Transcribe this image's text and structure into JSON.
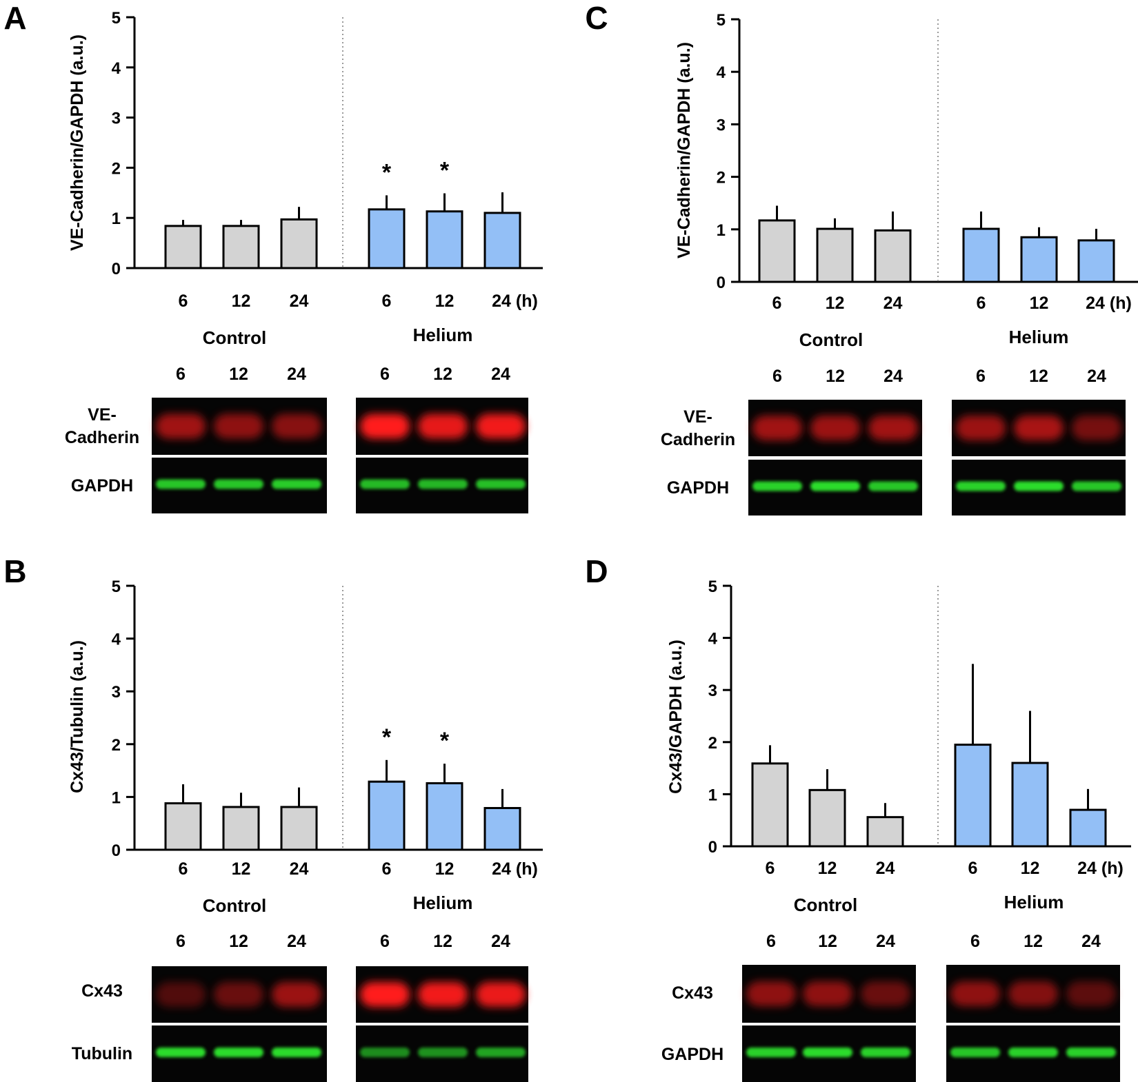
{
  "colors": {
    "control_fill": "#d3d3d3",
    "helium_fill": "#93bff6",
    "bar_stroke": "#000000",
    "error_bar": "#000000",
    "separator": "#999999",
    "blot_bg": "#050505",
    "red_band": "#ff1a1a",
    "green_band": "#2ee82e"
  },
  "chart_data": [
    {
      "panel": "A",
      "type": "bar",
      "ylabel": "VE-Cadherin/GAPDH (a.u.)",
      "ylim": [
        0,
        5
      ],
      "yticks": [
        "0",
        "1",
        "2",
        "3",
        "4",
        "5"
      ],
      "time_labels": [
        "6",
        "12",
        "24",
        "6",
        "12",
        "24 (h)"
      ],
      "groups": [
        "Control",
        "Helium"
      ],
      "series": [
        {
          "name": "Control",
          "x": [
            "6",
            "12",
            "24"
          ],
          "values": [
            0.84,
            0.84,
            0.97
          ],
          "errors": [
            0.12,
            0.12,
            0.25
          ],
          "stars": [
            "",
            "",
            ""
          ]
        },
        {
          "name": "Helium",
          "x": [
            "6",
            "12",
            "24"
          ],
          "values": [
            1.17,
            1.13,
            1.1
          ],
          "errors": [
            0.28,
            0.36,
            0.41
          ],
          "stars": [
            "*",
            "*",
            ""
          ]
        }
      ],
      "blot": {
        "lane_labels": [
          "6",
          "12",
          "24",
          "6",
          "12",
          "24"
        ],
        "rows": [
          {
            "label_lines": [
              "VE-",
              "Cadherin"
            ],
            "color": "red",
            "control_intensity": [
              0.62,
              0.55,
              0.52
            ],
            "helium_intensity": [
              1.0,
              0.9,
              0.95
            ]
          },
          {
            "label_lines": [
              "GAPDH"
            ],
            "color": "green",
            "control_intensity": [
              0.85,
              0.85,
              0.88
            ],
            "helium_intensity": [
              0.8,
              0.78,
              0.82
            ]
          }
        ]
      }
    },
    {
      "panel": "B",
      "type": "bar",
      "ylabel": "Cx43/Tubulin (a.u.)",
      "ylim": [
        0,
        5
      ],
      "yticks": [
        "0",
        "1",
        "2",
        "3",
        "4",
        "5"
      ],
      "time_labels": [
        "6",
        "12",
        "24",
        "6",
        "12",
        "24 (h)"
      ],
      "groups": [
        "Control",
        "Helium"
      ],
      "series": [
        {
          "name": "Control",
          "x": [
            "6",
            "12",
            "24"
          ],
          "values": [
            0.88,
            0.81,
            0.81
          ],
          "errors": [
            0.36,
            0.27,
            0.37
          ],
          "stars": [
            "",
            "",
            ""
          ]
        },
        {
          "name": "Helium",
          "x": [
            "6",
            "12",
            "24"
          ],
          "values": [
            1.29,
            1.26,
            0.79
          ],
          "errors": [
            0.41,
            0.37,
            0.36
          ],
          "stars": [
            "*",
            "*",
            ""
          ]
        }
      ],
      "blot": {
        "lane_labels": [
          "6",
          "12",
          "24",
          "6",
          "12",
          "24"
        ],
        "rows": [
          {
            "label_lines": [
              "Cx43"
            ],
            "color": "red",
            "control_intensity": [
              0.3,
              0.4,
              0.6
            ],
            "helium_intensity": [
              1.0,
              0.95,
              0.92
            ]
          },
          {
            "label_lines": [
              "Tubulin"
            ],
            "color": "green",
            "control_intensity": [
              0.95,
              0.95,
              0.95
            ],
            "helium_intensity": [
              0.6,
              0.62,
              0.7
            ]
          }
        ]
      }
    },
    {
      "panel": "C",
      "type": "bar",
      "ylabel": "VE-Cadherin/GAPDH (a.u.)",
      "ylim": [
        0,
        5
      ],
      "yticks": [
        "0",
        "1",
        "2",
        "3",
        "4",
        "5"
      ],
      "time_labels": [
        "6",
        "12",
        "24",
        "6",
        "12",
        "24 (h)"
      ],
      "groups": [
        "Control",
        "Helium"
      ],
      "series": [
        {
          "name": "Control",
          "x": [
            "6",
            "12",
            "24"
          ],
          "values": [
            1.17,
            1.01,
            0.98
          ],
          "errors": [
            0.28,
            0.2,
            0.36
          ],
          "stars": [
            "",
            "",
            ""
          ]
        },
        {
          "name": "Helium",
          "x": [
            "6",
            "12",
            "24"
          ],
          "values": [
            1.01,
            0.85,
            0.79
          ],
          "errors": [
            0.33,
            0.19,
            0.22
          ],
          "stars": [
            "",
            "",
            ""
          ]
        }
      ],
      "blot": {
        "lane_labels": [
          "6",
          "12",
          "24",
          "6",
          "12",
          "24"
        ],
        "rows": [
          {
            "label_lines": [
              "VE-",
              "Cadherin"
            ],
            "color": "red",
            "control_intensity": [
              0.62,
              0.6,
              0.62
            ],
            "helium_intensity": [
              0.6,
              0.65,
              0.45
            ]
          },
          {
            "label_lines": [
              "GAPDH"
            ],
            "color": "green",
            "control_intensity": [
              0.9,
              0.95,
              0.85
            ],
            "helium_intensity": [
              0.9,
              0.95,
              0.85
            ]
          }
        ]
      }
    },
    {
      "panel": "D",
      "type": "bar",
      "ylabel": "Cx43/GAPDH (a.u.)",
      "ylim": [
        0,
        5
      ],
      "yticks": [
        "0",
        "1",
        "2",
        "3",
        "4",
        "5"
      ],
      "time_labels": [
        "6",
        "12",
        "24",
        "6",
        "12",
        "24 (h)"
      ],
      "groups": [
        "Control",
        "Helium"
      ],
      "series": [
        {
          "name": "Control",
          "x": [
            "6",
            "12",
            "24"
          ],
          "values": [
            1.59,
            1.08,
            0.56
          ],
          "errors": [
            0.35,
            0.4,
            0.27
          ],
          "stars": [
            "",
            "",
            ""
          ]
        },
        {
          "name": "Helium",
          "x": [
            "6",
            "12",
            "24"
          ],
          "values": [
            1.95,
            1.6,
            0.7
          ],
          "errors": [
            1.55,
            1.0,
            0.4
          ],
          "stars": [
            "",
            "",
            ""
          ]
        }
      ],
      "blot": {
        "lane_labels": [
          "6",
          "12",
          "24",
          "6",
          "12",
          "24"
        ],
        "rows": [
          {
            "label_lines": [
              "Cx43"
            ],
            "color": "red",
            "control_intensity": [
              0.55,
              0.55,
              0.4
            ],
            "helium_intensity": [
              0.55,
              0.5,
              0.35
            ]
          },
          {
            "label_lines": [
              "GAPDH"
            ],
            "color": "green",
            "control_intensity": [
              0.9,
              0.95,
              0.9
            ],
            "helium_intensity": [
              0.85,
              0.9,
              0.9
            ]
          }
        ]
      }
    }
  ]
}
